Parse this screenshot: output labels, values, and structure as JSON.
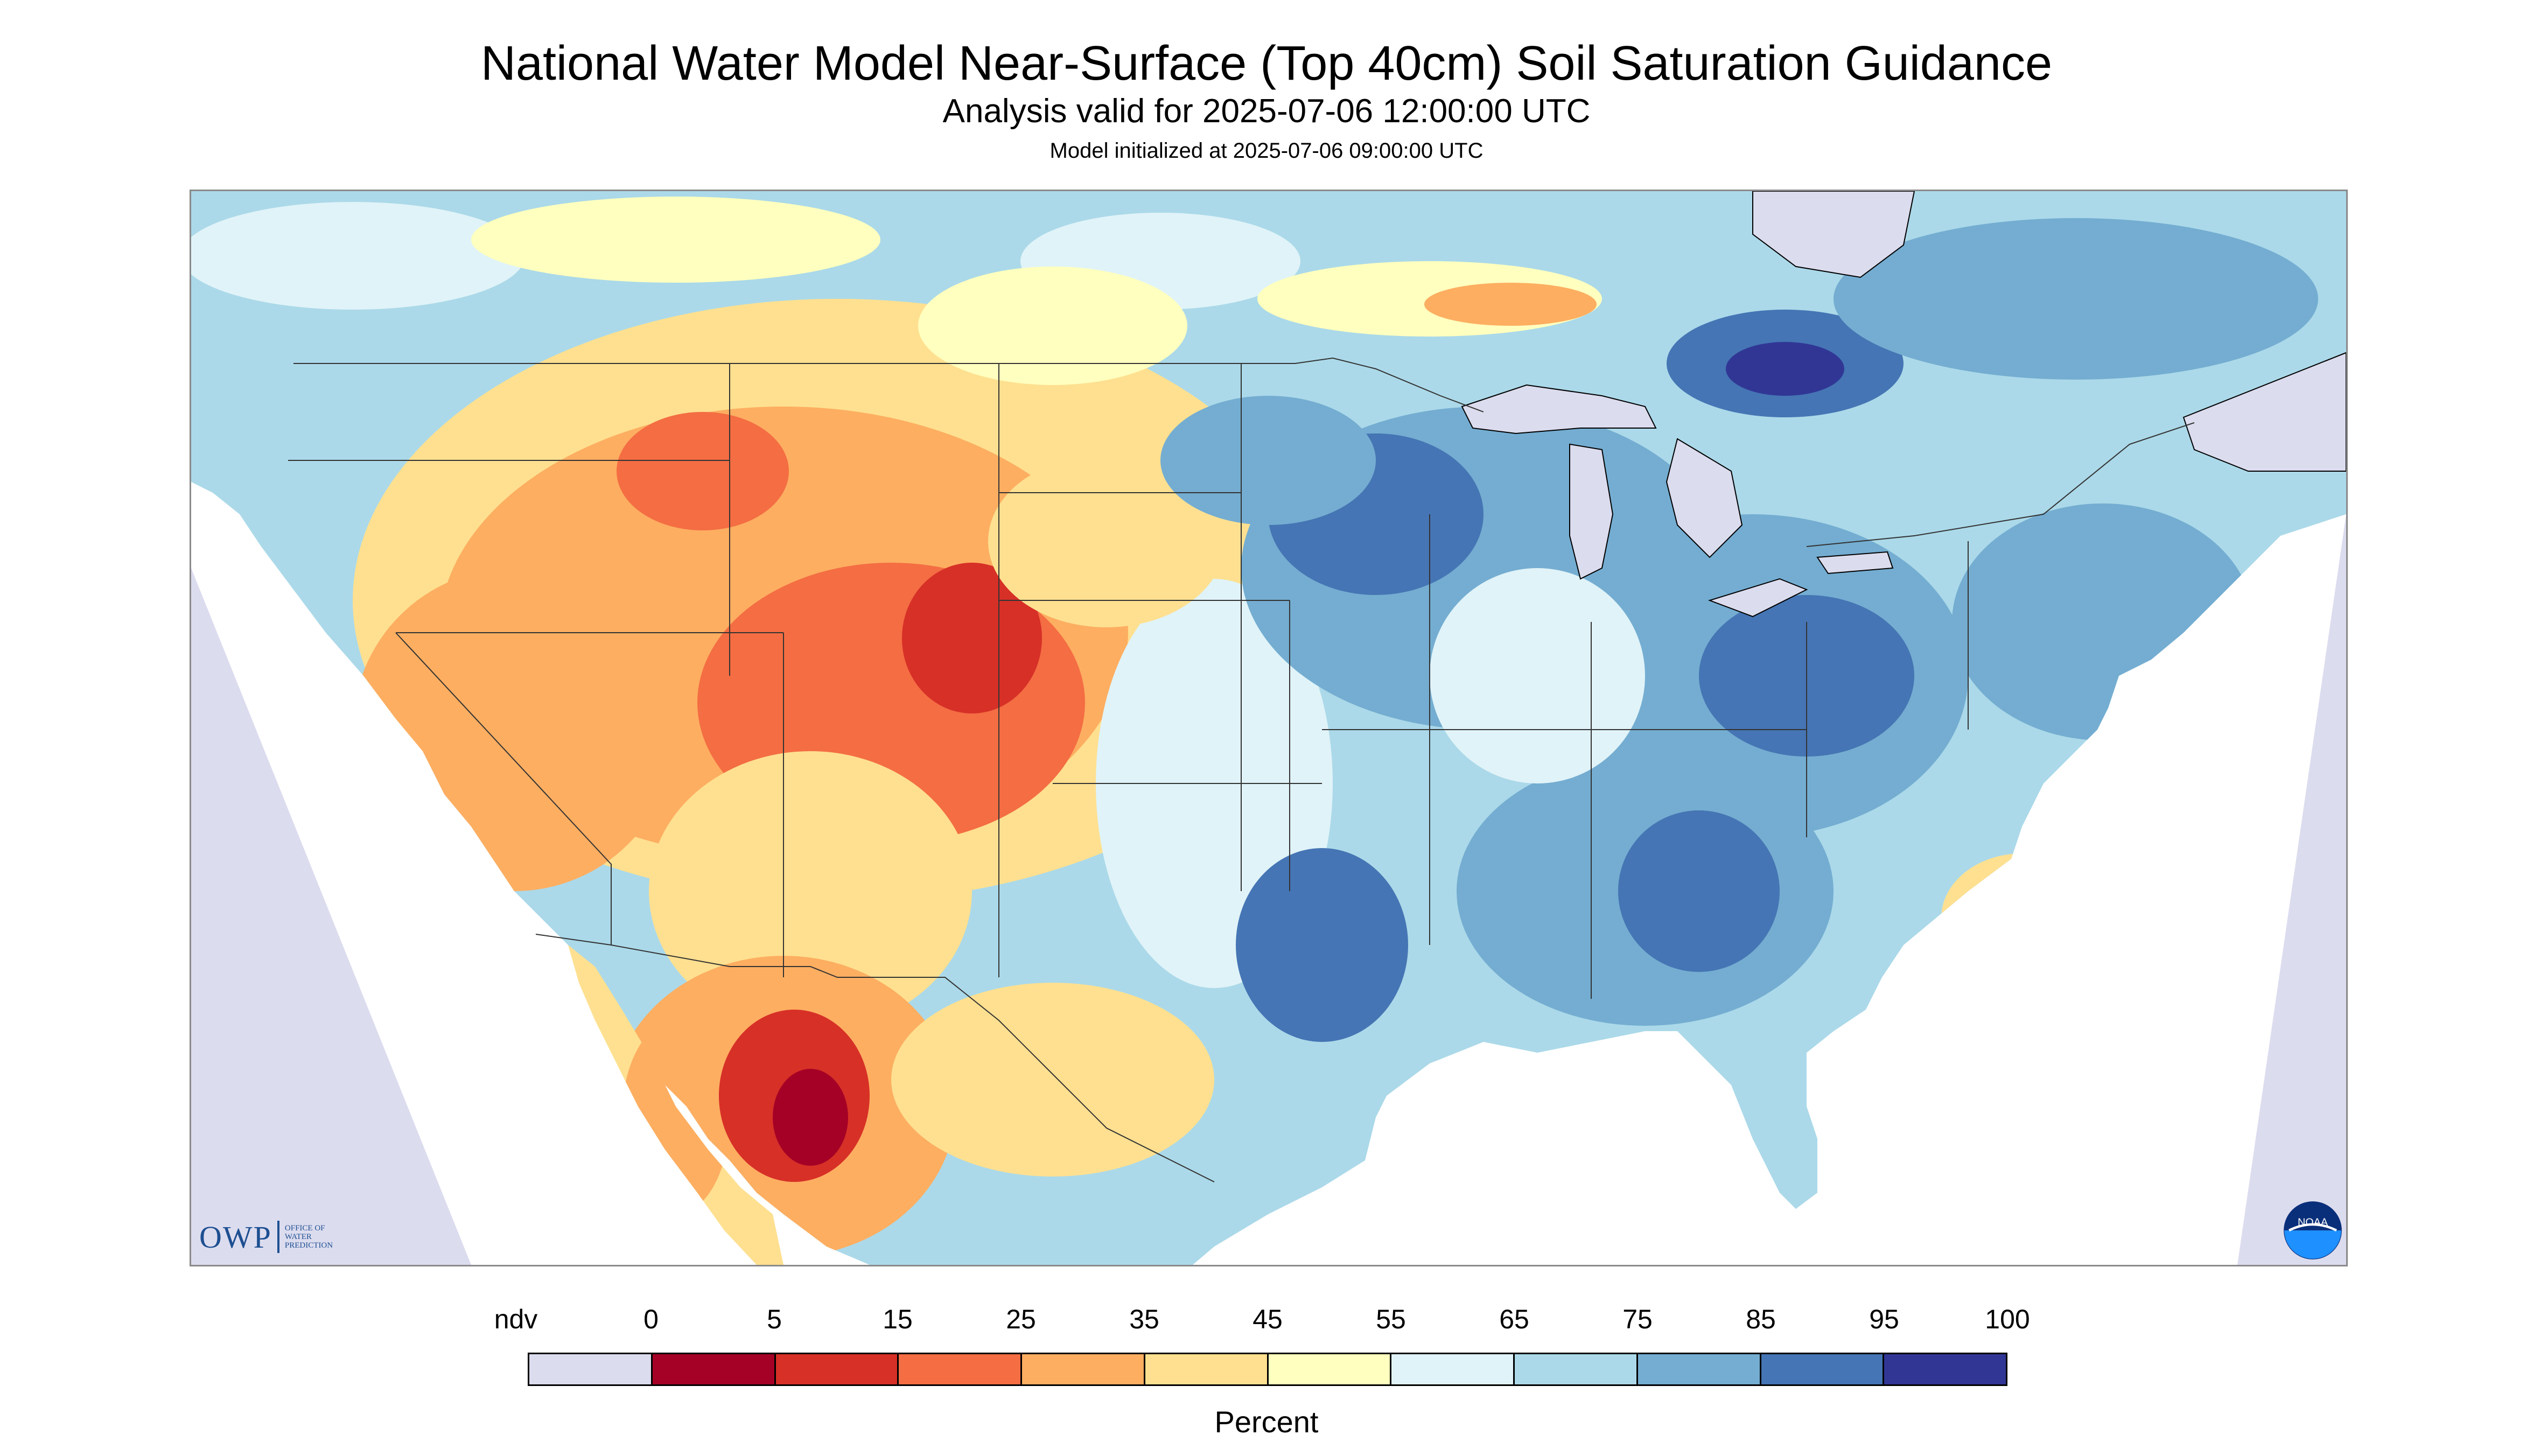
{
  "header": {
    "title": "National Water Model Near-Surface (Top 40cm) Soil Saturation Guidance",
    "subtitle": "Analysis valid for 2025-07-06 12:00:00 UTC",
    "init_line": "Model initialized at 2025-07-06 09:00:00 UTC"
  },
  "logos": {
    "owp_mark": "OWP",
    "owp_line1": "Office of",
    "owp_line2": "Water",
    "owp_line3": "Prediction",
    "noaa_text": "NOAA"
  },
  "legend": {
    "units": "Percent",
    "labels": [
      "ndv",
      "0",
      "5",
      "15",
      "25",
      "35",
      "45",
      "55",
      "65",
      "75",
      "85",
      "95",
      "100"
    ],
    "bins": [
      {
        "label": "ndv",
        "color": "#dcdcef"
      },
      {
        "label": "0-5",
        "color": "#a50026"
      },
      {
        "label": "5-15",
        "color": "#d73027"
      },
      {
        "label": "15-25",
        "color": "#f46d43"
      },
      {
        "label": "25-35",
        "color": "#fdae61"
      },
      {
        "label": "35-45",
        "color": "#fee090"
      },
      {
        "label": "45-55",
        "color": "#ffffbf"
      },
      {
        "label": "55-65",
        "color": "#e0f3f8"
      },
      {
        "label": "65-75",
        "color": "#abd9e9"
      },
      {
        "label": "75-85",
        "color": "#74add1"
      },
      {
        "label": "85-95",
        "color": "#4575b4"
      },
      {
        "label": "95-100",
        "color": "#313695"
      }
    ]
  },
  "map": {
    "region": "Continental United States",
    "variable": "near-surface soil saturation",
    "ndv_color": "#dcdcef",
    "water_color": "#dcdcef"
  }
}
